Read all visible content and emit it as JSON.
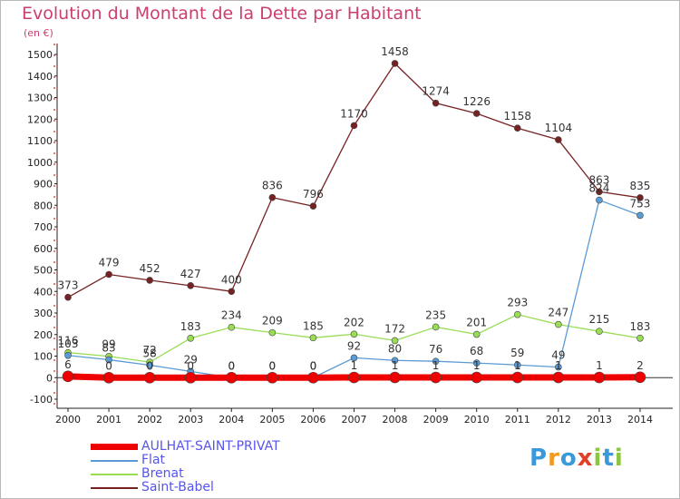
{
  "title": "Evolution du Montant de la Dette par Habitant",
  "subtitle": "(en €)",
  "logo_text": "Proxiti",
  "chart_data": {
    "type": "line",
    "title": "Evolution du Montant de la Dette par Habitant",
    "subtitle": "(en €)",
    "x": [
      "2000",
      "2001",
      "2002",
      "2003",
      "2004",
      "2005",
      "2006",
      "2007",
      "2008",
      "2009",
      "2010",
      "2011",
      "2012",
      "2013",
      "2014"
    ],
    "yticks": [
      -100,
      0,
      100,
      200,
      300,
      400,
      500,
      600,
      700,
      800,
      900,
      1000,
      1100,
      1200,
      1300,
      1400,
      1500
    ],
    "ylim": [
      -100,
      1500
    ],
    "grid": false,
    "legend_position": "bottom-left",
    "series": [
      {
        "name": "AULHAT-SAINT-PRIVAT",
        "color": "#ee0000",
        "values": [
          6,
          0,
          0,
          0,
          0,
          0,
          0,
          1,
          1,
          1,
          1,
          1,
          1,
          1,
          2
        ],
        "labels": [
          "6",
          "0",
          "0",
          "0",
          "0",
          "0",
          "0",
          "1",
          "1",
          "1",
          "1",
          "1",
          "1",
          "1",
          "2"
        ]
      },
      {
        "name": "Flat",
        "color": "#5a9ad5",
        "values": [
          103,
          83,
          58,
          29,
          0,
          0,
          0,
          92,
          80,
          76,
          68,
          59,
          49,
          824,
          753
        ],
        "labels": [
          "103",
          "83",
          "58",
          "29",
          "0",
          "0",
          "0",
          "92",
          "80",
          "76",
          "68",
          "59",
          "49",
          "824",
          "753"
        ]
      },
      {
        "name": "Brenat",
        "color": "#99dd55",
        "values": [
          116,
          99,
          72,
          183,
          234,
          209,
          185,
          202,
          172,
          235,
          201,
          293,
          247,
          215,
          183
        ],
        "labels": [
          "116",
          "99",
          "72",
          "183",
          "234",
          "209",
          "185",
          "202",
          "172",
          "235",
          "201",
          "293",
          "247",
          "215",
          "183"
        ]
      },
      {
        "name": "Saint-Babel",
        "color": "#772222",
        "values": [
          373,
          479,
          452,
          427,
          400,
          836,
          796,
          1170,
          1458,
          1274,
          1226,
          1158,
          1104,
          863,
          835
        ],
        "labels": [
          "373",
          "479",
          "452",
          "427",
          "400",
          "836",
          "796",
          "1170",
          "1458",
          "1274",
          "1226",
          "1158",
          "1104",
          "863",
          "835"
        ]
      }
    ]
  }
}
